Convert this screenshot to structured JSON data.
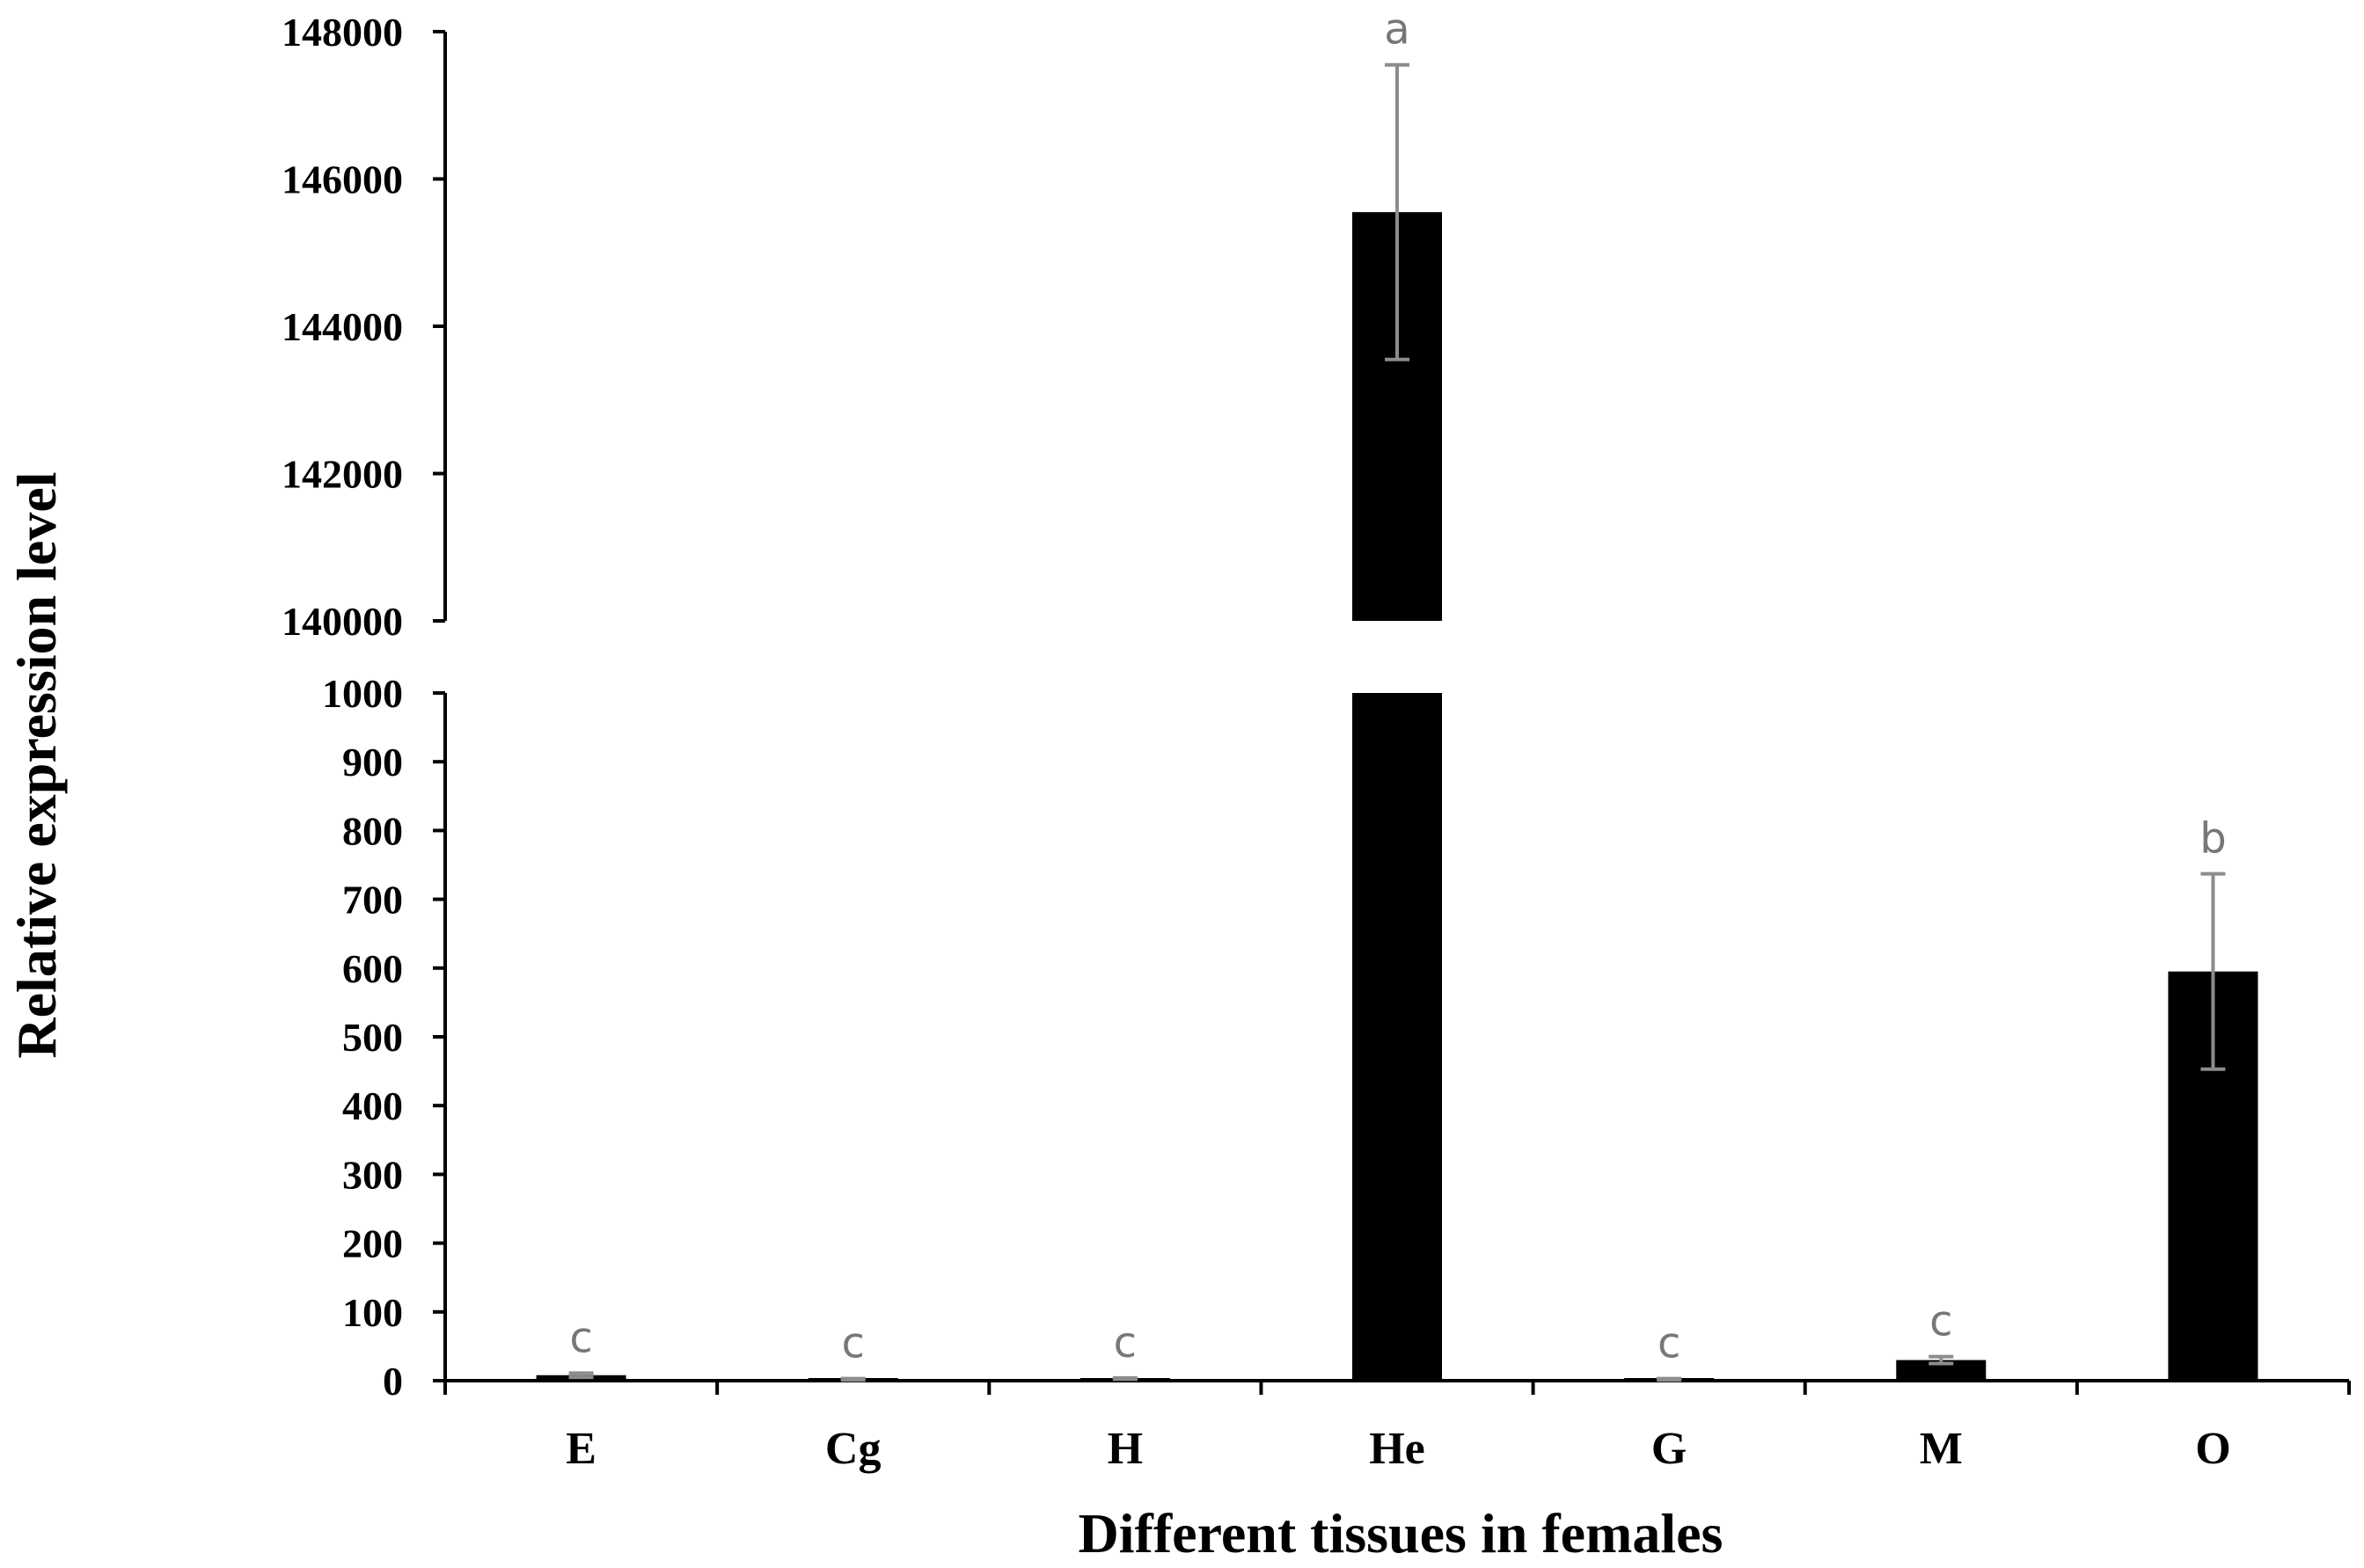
{
  "chart_data": {
    "type": "bar",
    "xlabel": "Different tissues in females",
    "ylabel": "Relative expression level",
    "categories": [
      "E",
      "Cg",
      "H",
      "He",
      "G",
      "M",
      "O"
    ],
    "values": [
      8,
      2,
      3,
      145550,
      2,
      30,
      595
    ],
    "errors": [
      3,
      1,
      1,
      2000,
      1,
      5,
      142
    ],
    "significance": [
      "c",
      "c",
      "c",
      "a",
      "c",
      "c",
      "b"
    ],
    "axis_break": true,
    "lower_segment": {
      "ylim": [
        0,
        1000
      ],
      "ticks": [
        "0",
        "100",
        "200",
        "300",
        "400",
        "500",
        "600",
        "700",
        "800",
        "900",
        "1000"
      ]
    },
    "upper_segment": {
      "ylim": [
        140000,
        148000
      ],
      "ticks": [
        "140000",
        "142000",
        "144000",
        "146000",
        "148000"
      ]
    },
    "bar_color": "#000000",
    "error_bar_color": "#8c8c8c",
    "significance_color": "#777777",
    "grid": false,
    "legend": "none"
  }
}
